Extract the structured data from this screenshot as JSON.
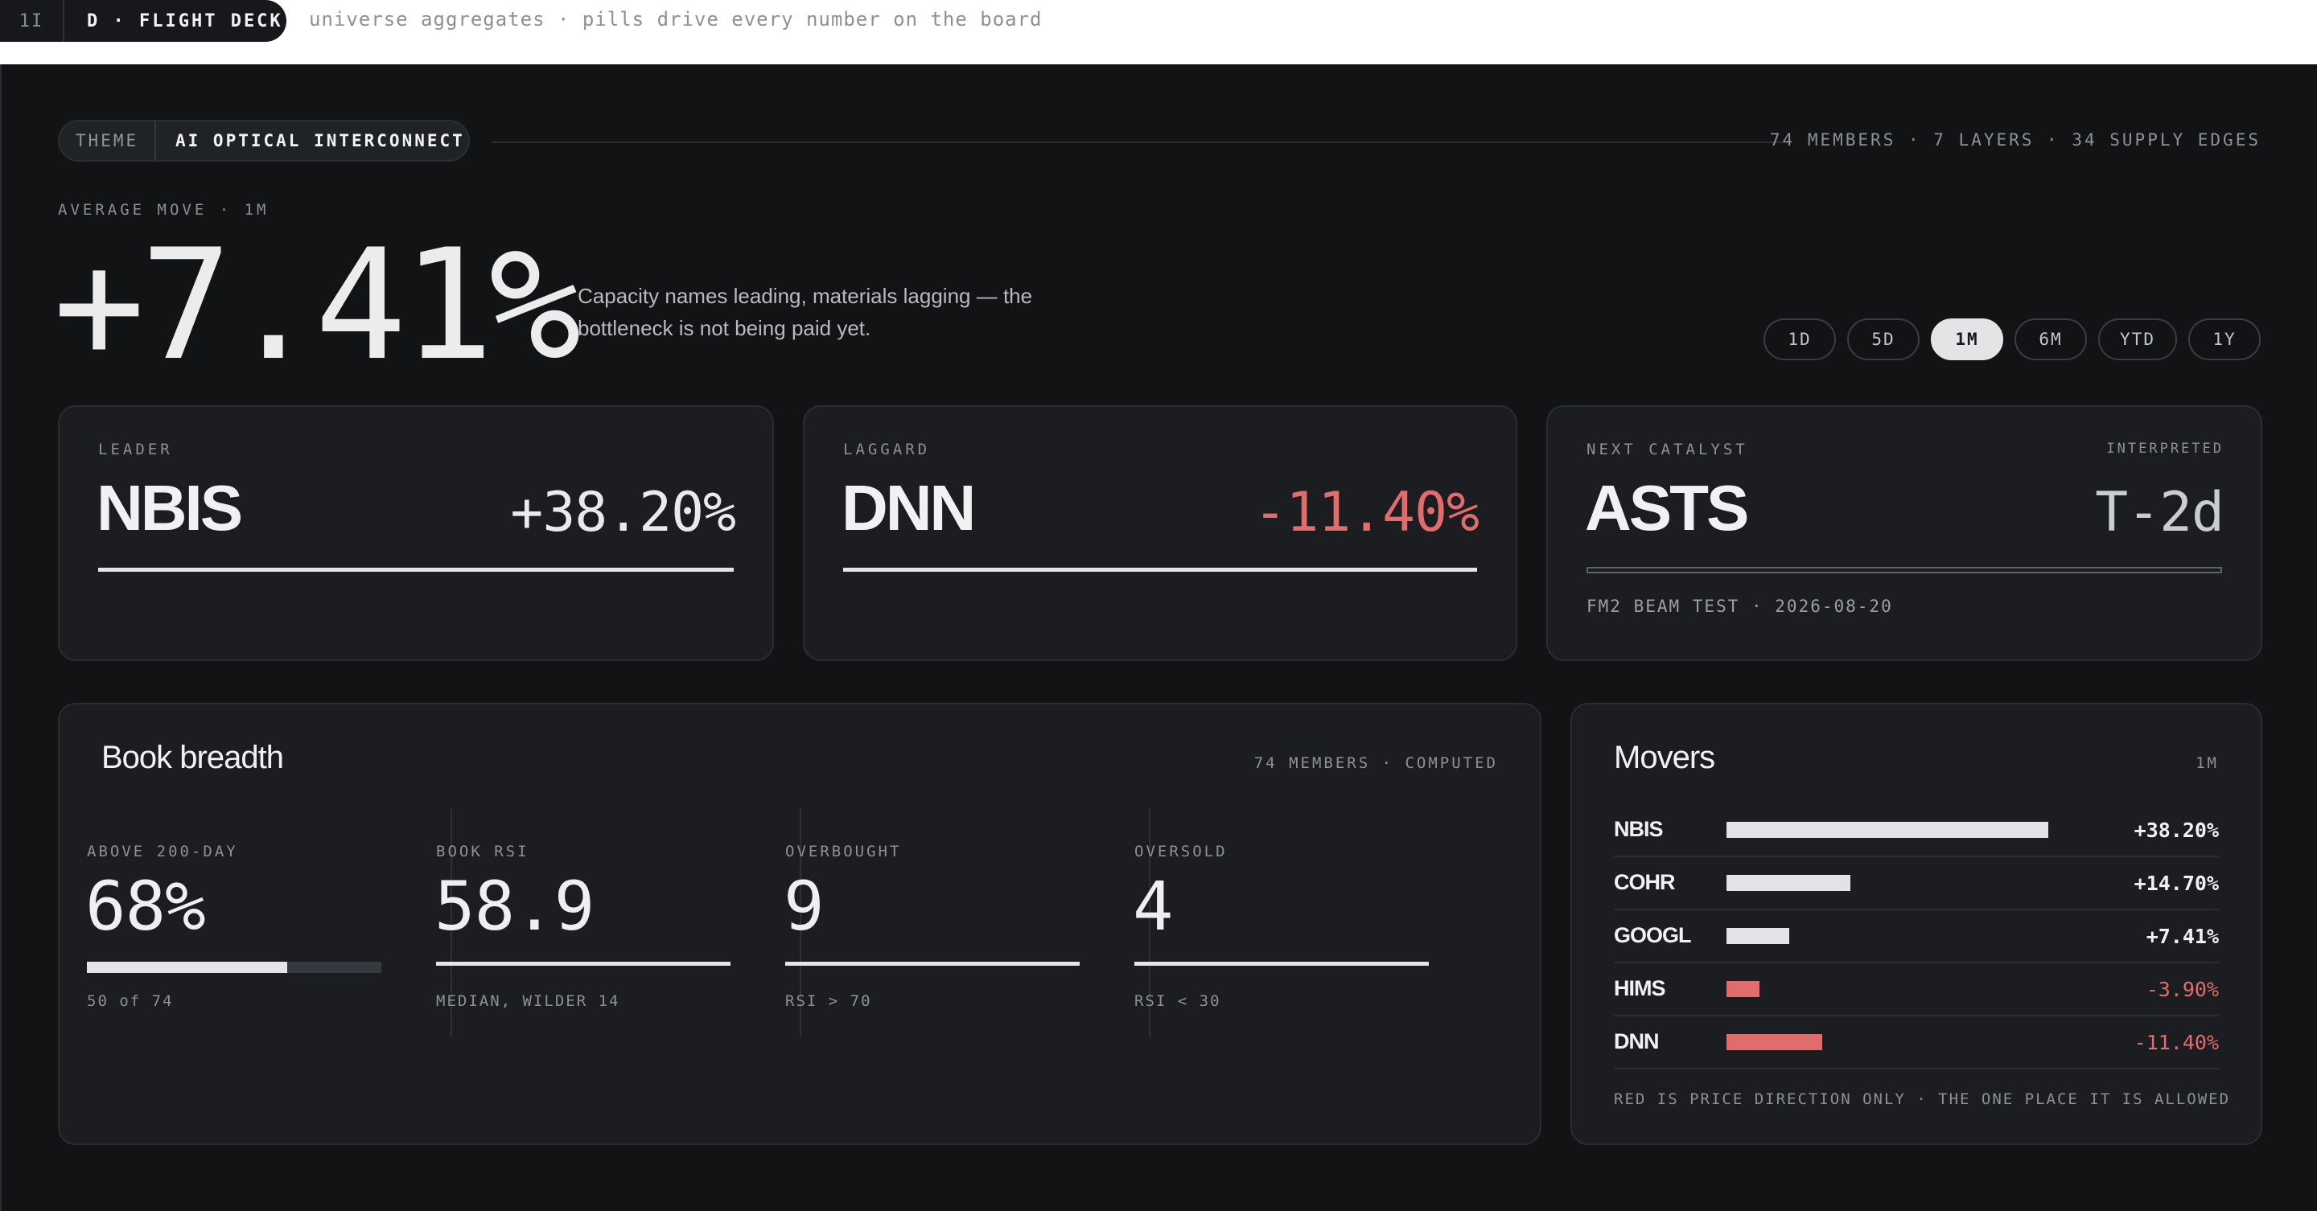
{
  "header": {
    "badge_number": "1I",
    "badge_title": "D · FLIGHT DECK",
    "caption": "universe aggregates · pills drive every number on the board"
  },
  "theme": {
    "key": "THEME",
    "value": "AI OPTICAL INTERCONNECT",
    "meta": "74 MEMBERS · 7 LAYERS · 34 SUPPLY EDGES"
  },
  "average": {
    "label": "AVERAGE MOVE · 1M",
    "value": "+7.41%",
    "note": "Capacity names leading, materials lagging — the bottleneck is not being paid yet."
  },
  "periods": [
    "1D",
    "5D",
    "1M",
    "6M",
    "YTD",
    "1Y"
  ],
  "active_period": "1M",
  "cards": {
    "leader": {
      "label": "LEADER",
      "ticker": "NBIS",
      "value": "+38.20%"
    },
    "laggard": {
      "label": "LAGGARD",
      "ticker": "DNN",
      "value": "-11.40%"
    },
    "catalyst": {
      "label": "NEXT CATALYST",
      "tag": "INTERPRETED",
      "ticker": "ASTS",
      "value": "T-2d",
      "sub": "FM2 BEAM TEST · 2026-08-20"
    }
  },
  "breadth": {
    "title": "Book breadth",
    "meta": "74 MEMBERS · COMPUTED",
    "above200": {
      "label": "ABOVE 200-DAY",
      "value": "68%",
      "fraction": 0.68,
      "sub": "50 of 74"
    },
    "rsi": {
      "label": "BOOK RSI",
      "value": "58.9",
      "sub": "MEDIAN, WILDER 14"
    },
    "overbought": {
      "label": "OVERBOUGHT",
      "value": "9",
      "sub": "RSI > 70"
    },
    "oversold": {
      "label": "OVERSOLD",
      "value": "4",
      "sub": "RSI < 30"
    }
  },
  "movers": {
    "title": "Movers",
    "period": "1M",
    "rows": [
      {
        "name": "NBIS",
        "value": "+38.20%",
        "pct": 38.2
      },
      {
        "name": "COHR",
        "value": "+14.70%",
        "pct": 14.7
      },
      {
        "name": "GOOGL",
        "value": "+7.41%",
        "pct": 7.41
      },
      {
        "name": "HIMS",
        "value": "-3.90%",
        "pct": -3.9
      },
      {
        "name": "DNN",
        "value": "-11.40%",
        "pct": -11.4
      }
    ],
    "footnote": "RED IS PRICE DIRECTION ONLY · THE ONE PLACE IT IS ALLOWED"
  },
  "colors": {
    "background": "#121315",
    "card": "#1b1d20",
    "negative": "#e06c6c",
    "positive_bar": "#e2e3e4"
  }
}
